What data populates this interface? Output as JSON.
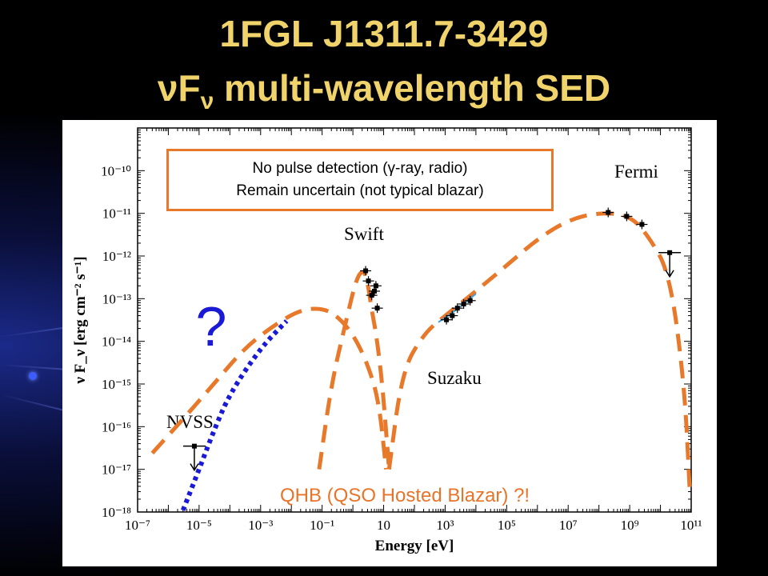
{
  "title_line1": "1FGL J1311.7-3429",
  "title_line2_nu": "νF",
  "title_line2_sub": "ν",
  "title_line2_rest": " multi-wavelength SED",
  "note_line1": "No pulse detection (γ-ray, radio)",
  "note_line2": "Remain uncertain (not typical blazar)",
  "qmark": "?",
  "qhb_label": "QHB (QSO Hosted Blazar) ?!",
  "colors": {
    "title": "#f0d36a",
    "orange": "#e8782a",
    "blue": "#1a1ad6",
    "cyan": "#3aa0e0"
  },
  "chart_data": {
    "type": "scatter",
    "xlabel": "Energy [eV]",
    "ylabel": "ν F_ν [erg cm⁻² s⁻¹]",
    "xscale": "log",
    "yscale": "log",
    "xlim": [
      1e-07,
      100000000000.0
    ],
    "ylim": [
      1e-18,
      1e-09
    ],
    "xticks": [
      "10⁻⁷",
      "10⁻⁵",
      "10⁻³",
      "10⁻¹",
      "10",
      "10³",
      "10⁵",
      "10⁷",
      "10⁹",
      "10¹¹"
    ],
    "yticks": [
      "10⁻¹⁸",
      "10⁻¹⁷",
      "10⁻¹⁶",
      "10⁻¹⁵",
      "10⁻¹⁴",
      "10⁻¹³",
      "10⁻¹²",
      "10⁻¹¹",
      "10⁻¹⁰"
    ],
    "annotations": [
      "NVSS",
      "Swift",
      "Suzaku",
      "Fermi"
    ],
    "series": [
      {
        "name": "NVSS",
        "points": [
          {
            "x": 7e-06,
            "y": 3.5e-17,
            "upper_limit": true
          }
        ]
      },
      {
        "name": "Swift",
        "points": [
          {
            "x": 2.6,
            "y": 4.5e-13
          },
          {
            "x": 3.2,
            "y": 2.6e-13
          },
          {
            "x": 4.1,
            "y": 1.2e-13
          },
          {
            "x": 5.0,
            "y": 1.5e-13
          },
          {
            "x": 5.6,
            "y": 2e-13
          },
          {
            "x": 6.2,
            "y": 6e-14
          }
        ]
      },
      {
        "name": "Suzaku",
        "points": [
          {
            "x": 1100,
            "y": 3.2e-14
          },
          {
            "x": 1700,
            "y": 4e-14
          },
          {
            "x": 2500,
            "y": 6e-14
          },
          {
            "x": 4000,
            "y": 7.5e-14
          },
          {
            "x": 6500,
            "y": 9e-14
          }
        ]
      },
      {
        "name": "Fermi",
        "points": [
          {
            "x": 200000000.0,
            "y": 1.05e-11
          },
          {
            "x": 800000000.0,
            "y": 8.5e-12
          },
          {
            "x": 2500000000.0,
            "y": 5.5e-12
          },
          {
            "x": 20000000000.0,
            "y": 1.2e-12,
            "upper_limit": true
          }
        ]
      }
    ],
    "models": [
      {
        "name": "orange-low",
        "style": "dashed",
        "points": [
          [
            3e-07,
            2.4e-17
          ],
          [
            3e-06,
            1.5e-16
          ],
          [
            3e-05,
            1e-15
          ],
          [
            0.0003,
            7e-15
          ],
          [
            0.003,
            2.5e-14
          ],
          [
            0.02,
            5.5e-14
          ],
          [
            0.1,
            6e-14
          ],
          [
            0.3,
            4e-14
          ],
          [
            1,
            1.5e-14
          ],
          [
            3,
            3e-15
          ],
          [
            7,
            4e-16
          ],
          [
            12,
            1e-17
          ]
        ]
      },
      {
        "name": "orange-peak",
        "style": "dashed",
        "points": [
          [
            0.08,
            1e-17
          ],
          [
            0.2,
            1e-15
          ],
          [
            0.6,
            3e-14
          ],
          [
            1.3,
            3e-13
          ],
          [
            2.2,
            4.8e-13
          ],
          [
            3,
            2.5e-13
          ],
          [
            4,
            6e-14
          ],
          [
            6,
            1.2e-14
          ],
          [
            9,
            1e-15
          ],
          [
            12,
            8e-17
          ],
          [
            15,
            1e-17
          ]
        ]
      },
      {
        "name": "orange-high",
        "style": "dashed",
        "points": [
          [
            15,
            1e-17
          ],
          [
            40,
            2e-15
          ],
          [
            200,
            1.5e-14
          ],
          [
            1000,
            4e-14
          ],
          [
            10000.0,
            1.5e-13
          ],
          [
            100000.0,
            6e-13
          ],
          [
            1000000.0,
            2.5e-12
          ],
          [
            10000000.0,
            7e-12
          ],
          [
            100000000.0,
            1.05e-11
          ],
          [
            1000000000.0,
            9e-12
          ],
          [
            4000000000.0,
            3e-12
          ],
          [
            20000000000.0,
            4e-13
          ],
          [
            60000000000.0,
            1e-15
          ],
          [
            90000000000.0,
            3e-18
          ]
        ]
      },
      {
        "name": "blue-model",
        "style": "dotted",
        "points": [
          [
            3e-06,
            1.1e-18
          ],
          [
            1e-05,
            1e-17
          ],
          [
            3e-05,
            8e-17
          ],
          [
            0.0001,
            6e-16
          ],
          [
            0.001,
            7e-15
          ],
          [
            0.007,
            3e-14
          ]
        ]
      },
      {
        "name": "cyan-segment",
        "style": "solid",
        "points": [
          [
            600,
            2.8e-14
          ],
          [
            2000,
            5e-14
          ],
          [
            10000.0,
            1.3e-13
          ]
        ]
      }
    ]
  }
}
